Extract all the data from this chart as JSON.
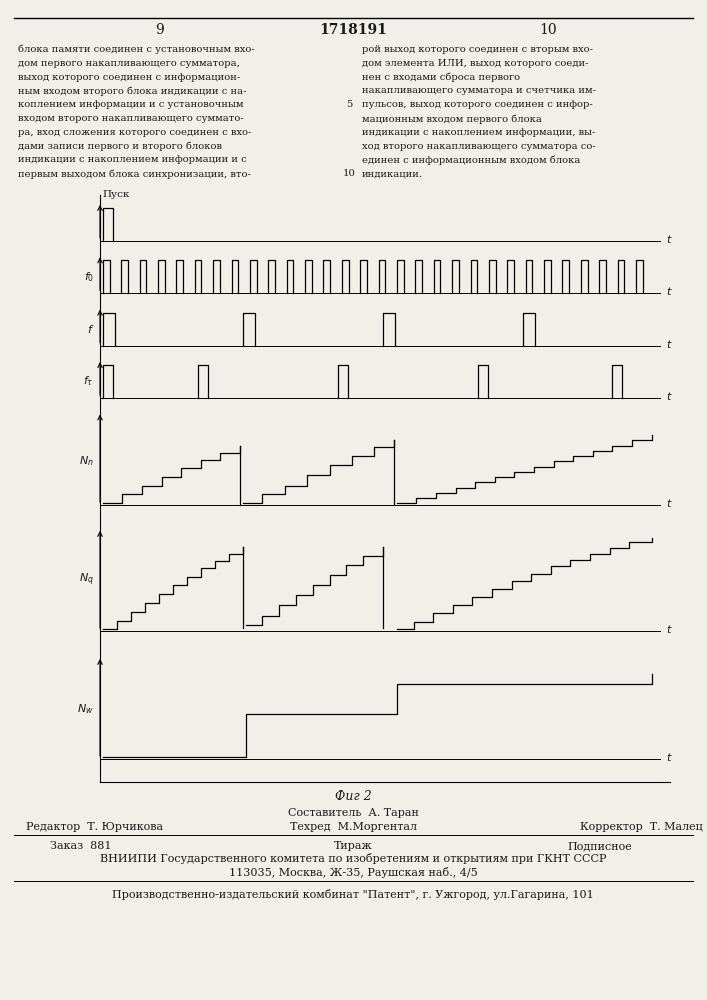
{
  "page_numbers": [
    "9",
    "1718191",
    "10"
  ],
  "left_lines": [
    "блока памяти соединен с установочным вхо-",
    "дом первого накапливающего сумматора,",
    "выход которого соединен с информацион-",
    "ным входом второго блока индикации с на-",
    "коплением информации и с установочным",
    "входом второго накапливающего суммато-",
    "ра, вход сложения которого соединен с вхо-",
    "дами записи первого и второго блоков",
    "индикации с накоплением информации и с",
    "первым выходом блока синхронизации, вто-"
  ],
  "right_lines": [
    "рой выход которого соединен с вторым вхо-",
    "дом элемента ИЛИ, выход которого соеди-",
    "нен с входами сброса первого",
    "накапливающего сумматора и счетчика им-",
    "пульсов, выход которого соединен с инфор-",
    "мационным входом первого блока",
    "индикации с накоплением информации, вы-",
    "ход второго накапливающего сумматора со-",
    "единен с информационным входом блока",
    "индикации."
  ],
  "fig_label": "Фиг 2",
  "composer": "Составитель  А. Таран",
  "editor": "Редактор  Т. Юрчикова",
  "techred": "Техред  М.Моргентал",
  "corrector": "Корректор  Т. Малец",
  "order": "Заказ  881",
  "tirazh": "Тираж",
  "podpisnoe": "Подписное",
  "vniiipi": "ВНИИПИ Государственного комитета по изобретениям и открытиям при ГКНТ СССР",
  "address": "113035, Москва, Ж-35, Раушская наб., 4/5",
  "publisher": "Производственно-издательский комбинат \"Патент\", г. Ужгород, ул.Гагарина, 101",
  "bg_color": "#f2efe9",
  "text_color": "#1a1a1a"
}
